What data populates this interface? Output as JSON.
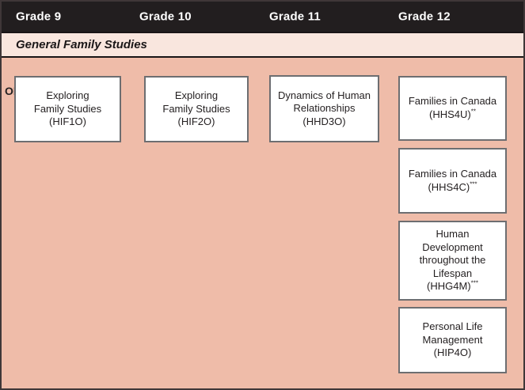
{
  "diagram": {
    "title_band": {
      "grades": [
        "Grade 9",
        "Grade 10",
        "Grade 11",
        "Grade 12"
      ]
    },
    "category": "General Family Studies",
    "or_label": "OR",
    "courses": {
      "hif1o": {
        "lines": [
          "Exploring",
          "Family Studies"
        ],
        "code": "(HIF1O)",
        "sup": ""
      },
      "hif2o": {
        "lines": [
          "Exploring",
          "Family Studies"
        ],
        "code": "(HIF2O)",
        "sup": ""
      },
      "hhd3o": {
        "lines": [
          "Dynamics of Human",
          "Relationships"
        ],
        "code": "(HHD3O)",
        "sup": ""
      },
      "hhs4u": {
        "lines": [
          "Families in Canada"
        ],
        "code": "(HHS4U)",
        "sup": "**"
      },
      "hhs4c": {
        "lines": [
          "Families in Canada"
        ],
        "code": "(HHS4C)",
        "sup": "***"
      },
      "hhg4m": {
        "lines": [
          "Human",
          "Development",
          "throughout the",
          "Lifespan"
        ],
        "code": "(HHG4M)",
        "sup": "***"
      },
      "hip4o": {
        "lines": [
          "Personal Life",
          "Management"
        ],
        "code": "(HIP4O)",
        "sup": ""
      }
    },
    "colors": {
      "header_bg": "#221e1f",
      "header_text": "#ffffff",
      "category_band_bg": "#f9e6de",
      "canvas_bg": "#efbca9",
      "box_bg": "#ffffff",
      "box_border": "#6d6e71",
      "outer_border": "#3f3738",
      "text": "#231f20"
    }
  }
}
